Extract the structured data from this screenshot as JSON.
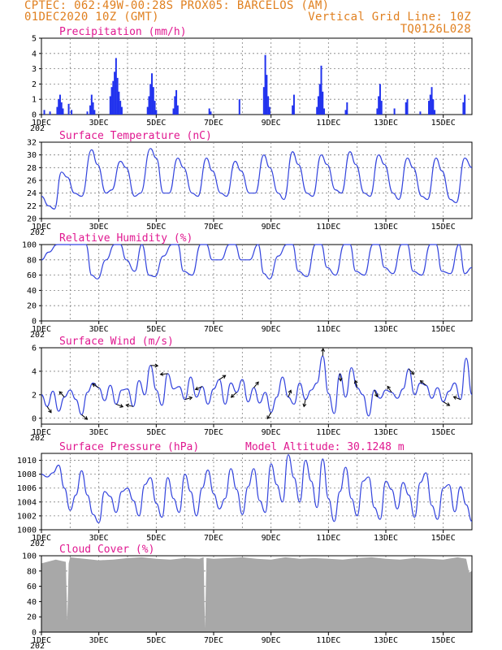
{
  "header": {
    "line1_left": "CPTEC:   062:49W-00:28S  PROX05: BARCELOS (AM)",
    "line2_left": "01DEC2020 10Z (GMT)",
    "line2_right": "Vertical Grid Line: 10Z",
    "line3_right": "TQ0126L028"
  },
  "colors": {
    "header_text": "#e08020",
    "panel_title": "#e01890",
    "series_line": "#3344dd",
    "precip_bar": "#2233ee",
    "cloud_fill": "#a8a8a8",
    "grid": "#808080"
  },
  "x_axis": {
    "labels": [
      "1DEC",
      "3DEC",
      "5DEC",
      "7DEC",
      "9DEC",
      "11DEC",
      "13DEC",
      "15DEC"
    ],
    "label_days": [
      1,
      3,
      5,
      7,
      9,
      11,
      13,
      15
    ],
    "year_marker": "202",
    "start_day": 1,
    "end_day": 16
  },
  "chart_data": [
    {
      "id": "precip",
      "type": "bar",
      "title": "Precipitation (mm/h)",
      "ylim": [
        0,
        5
      ],
      "yticks": [
        0,
        1,
        2,
        3,
        4,
        5
      ],
      "x": [
        1.1,
        1.3,
        1.55,
        1.6,
        1.65,
        1.7,
        1.75,
        1.95,
        2.05,
        2.6,
        2.7,
        2.75,
        2.8,
        2.85,
        3.4,
        3.45,
        3.5,
        3.55,
        3.6,
        3.65,
        3.7,
        3.75,
        3.8,
        4.7,
        4.75,
        4.8,
        4.85,
        4.9,
        4.95,
        5.0,
        5.6,
        5.65,
        5.7,
        5.75,
        6.85,
        6.9,
        7.9,
        8.75,
        8.8,
        8.85,
        8.9,
        8.95,
        9.75,
        9.8,
        10.6,
        10.65,
        10.7,
        10.75,
        10.8,
        10.85,
        11.6,
        11.65,
        12.7,
        12.75,
        12.8,
        12.85,
        13.3,
        13.7,
        13.75,
        14.2,
        14.5,
        14.55,
        14.6,
        14.65,
        14.7,
        15.7,
        15.75
      ],
      "values": [
        0.3,
        0.2,
        0.5,
        1.0,
        1.3,
        0.8,
        0.4,
        0.7,
        0.3,
        0.2,
        0.6,
        1.3,
        0.8,
        0.3,
        1.2,
        1.8,
        2.2,
        2.8,
        3.7,
        2.4,
        1.5,
        0.9,
        0.5,
        0.5,
        1.2,
        2.0,
        2.7,
        1.8,
        0.9,
        0.3,
        0.4,
        1.2,
        1.6,
        0.6,
        0.4,
        0.2,
        1.0,
        1.8,
        3.9,
        2.6,
        1.2,
        0.5,
        0.6,
        1.3,
        0.5,
        1.2,
        2.0,
        3.2,
        1.5,
        0.4,
        0.3,
        0.8,
        0.4,
        1.2,
        2.0,
        0.9,
        0.4,
        0.8,
        1.0,
        0.2,
        0.9,
        1.3,
        1.8,
        1.0,
        0.3,
        0.8,
        1.3
      ]
    },
    {
      "id": "temp",
      "type": "line",
      "title": "Surface Temperature (nC)",
      "ylim": [
        20,
        32
      ],
      "yticks": [
        20,
        22,
        24,
        26,
        28,
        30,
        32
      ],
      "x": [
        1.0,
        1.25,
        1.45,
        1.7,
        1.9,
        2.15,
        2.4,
        2.75,
        2.95,
        3.25,
        3.45,
        3.75,
        3.95,
        4.25,
        4.45,
        4.8,
        5.0,
        5.25,
        5.45,
        5.75,
        5.95,
        6.25,
        6.45,
        6.75,
        6.95,
        7.25,
        7.45,
        7.75,
        7.95,
        8.25,
        8.45,
        8.75,
        8.95,
        9.25,
        9.45,
        9.75,
        9.95,
        10.25,
        10.45,
        10.75,
        10.95,
        11.25,
        11.45,
        11.75,
        11.95,
        12.25,
        12.45,
        12.75,
        12.95,
        13.25,
        13.45,
        13.75,
        13.95,
        14.25,
        14.45,
        14.75,
        14.95,
        15.25,
        15.45,
        15.75,
        16.0
      ],
      "values": [
        23.5,
        22.0,
        21.5,
        27.3,
        26.5,
        24.0,
        23.5,
        30.8,
        28.5,
        24.0,
        24.5,
        29.0,
        28.0,
        23.5,
        24.0,
        31.0,
        29.5,
        24.0,
        24.0,
        29.5,
        28.0,
        24.0,
        23.5,
        29.5,
        27.5,
        24.0,
        23.5,
        29.0,
        27.5,
        24.0,
        24.0,
        30.0,
        28.0,
        24.0,
        23.0,
        30.5,
        28.5,
        24.0,
        23.5,
        30.0,
        28.5,
        24.5,
        24.0,
        30.5,
        28.5,
        24.0,
        23.5,
        30.0,
        28.5,
        24.0,
        23.0,
        29.5,
        28.0,
        23.5,
        23.0,
        29.5,
        27.5,
        23.0,
        22.5,
        29.5,
        28.0
      ]
    },
    {
      "id": "rh",
      "type": "line",
      "title": "Relative Humidity (%)",
      "ylim": [
        0,
        100
      ],
      "yticks": [
        0,
        20,
        40,
        60,
        80,
        100
      ],
      "x": [
        1.0,
        1.25,
        1.55,
        1.75,
        2.0,
        2.3,
        2.55,
        2.75,
        2.95,
        3.25,
        3.55,
        3.75,
        3.95,
        4.25,
        4.5,
        4.75,
        4.95,
        5.25,
        5.55,
        5.75,
        5.95,
        6.25,
        6.55,
        6.75,
        6.95,
        7.25,
        7.55,
        7.75,
        7.95,
        8.25,
        8.55,
        8.75,
        8.95,
        9.25,
        9.55,
        9.75,
        9.95,
        10.25,
        10.55,
        10.75,
        10.95,
        11.25,
        11.55,
        11.75,
        11.95,
        12.25,
        12.55,
        12.75,
        12.95,
        13.25,
        13.55,
        13.75,
        13.95,
        14.25,
        14.55,
        14.75,
        14.95,
        15.25,
        15.55,
        15.75,
        16.0
      ],
      "values": [
        80,
        90,
        100,
        100,
        100,
        100,
        100,
        60,
        55,
        80,
        100,
        100,
        80,
        65,
        100,
        60,
        58,
        85,
        100,
        100,
        65,
        60,
        100,
        100,
        80,
        80,
        100,
        100,
        80,
        80,
        100,
        62,
        55,
        85,
        100,
        100,
        65,
        58,
        100,
        100,
        70,
        60,
        100,
        100,
        65,
        60,
        100,
        100,
        70,
        62,
        100,
        100,
        65,
        60,
        100,
        100,
        65,
        62,
        100,
        62,
        70
      ]
    },
    {
      "id": "wind",
      "type": "line",
      "title": "Surface Wind (m/s)",
      "ylim": [
        -0.5,
        6
      ],
      "yticks": [
        0,
        2,
        4,
        6
      ],
      "x": [
        1.0,
        1.2,
        1.4,
        1.6,
        1.8,
        2.0,
        2.2,
        2.4,
        2.6,
        2.8,
        3.0,
        3.2,
        3.4,
        3.6,
        3.8,
        4.0,
        4.2,
        4.4,
        4.6,
        4.8,
        5.0,
        5.2,
        5.4,
        5.6,
        5.8,
        6.0,
        6.2,
        6.4,
        6.6,
        6.8,
        7.0,
        7.2,
        7.4,
        7.6,
        7.8,
        8.0,
        8.2,
        8.4,
        8.6,
        8.8,
        9.0,
        9.2,
        9.4,
        9.6,
        9.8,
        10.0,
        10.2,
        10.4,
        10.6,
        10.8,
        11.0,
        11.2,
        11.4,
        11.6,
        11.8,
        12.0,
        12.2,
        12.4,
        12.6,
        12.8,
        13.0,
        13.2,
        13.4,
        13.6,
        13.8,
        14.0,
        14.2,
        14.4,
        14.6,
        14.8,
        15.0,
        15.2,
        15.4,
        15.6,
        15.8,
        16.0
      ],
      "values": [
        2.0,
        1.0,
        2.3,
        0.6,
        1.8,
        2.4,
        1.6,
        0.3,
        2.2,
        3.0,
        2.6,
        1.5,
        2.8,
        1.2,
        2.4,
        2.5,
        1.0,
        3.2,
        2.0,
        4.5,
        2.4,
        1.1,
        3.8,
        2.5,
        2.7,
        1.6,
        3.5,
        1.8,
        2.7,
        1.2,
        2.5,
        3.3,
        1.2,
        3.0,
        2.2,
        3.3,
        1.4,
        2.6,
        1.3,
        2.2,
        0.5,
        1.8,
        3.5,
        1.8,
        1.2,
        3.0,
        1.6,
        2.4,
        3.0,
        5.3,
        2.1,
        0.4,
        3.8,
        1.8,
        4.3,
        2.6,
        2.0,
        0.2,
        2.4,
        1.7,
        2.4,
        2.2,
        1.7,
        2.5,
        4.2,
        2.0,
        3.0,
        2.8,
        1.7,
        2.6,
        1.4,
        2.3,
        3.0,
        1.6,
        5.1,
        2.0
      ]
    },
    {
      "id": "pressure",
      "type": "line",
      "title": "Surface Pressure (hPa)",
      "annotation": "Model Altitude: 30.1248 m",
      "ylim": [
        1000,
        1011
      ],
      "yticks": [
        1000,
        1002,
        1004,
        1006,
        1008,
        1010
      ],
      "x": [
        1.0,
        1.2,
        1.4,
        1.6,
        1.8,
        2.0,
        2.2,
        2.4,
        2.6,
        2.8,
        3.0,
        3.2,
        3.4,
        3.6,
        3.8,
        4.0,
        4.2,
        4.4,
        4.6,
        4.8,
        5.0,
        5.2,
        5.4,
        5.6,
        5.8,
        6.0,
        6.2,
        6.4,
        6.6,
        6.8,
        7.0,
        7.2,
        7.4,
        7.6,
        7.8,
        8.0,
        8.2,
        8.4,
        8.6,
        8.8,
        9.0,
        9.2,
        9.4,
        9.6,
        9.8,
        10.0,
        10.2,
        10.4,
        10.6,
        10.8,
        11.0,
        11.2,
        11.4,
        11.6,
        11.8,
        12.0,
        12.2,
        12.4,
        12.6,
        12.8,
        13.0,
        13.2,
        13.4,
        13.6,
        13.8,
        14.0,
        14.2,
        14.4,
        14.6,
        14.8,
        15.0,
        15.2,
        15.4,
        15.6,
        15.8,
        16.0
      ],
      "values": [
        1008.0,
        1007.6,
        1008.2,
        1009.3,
        1006.0,
        1002.8,
        1005.0,
        1008.5,
        1005.0,
        1002.2,
        1001.0,
        1005.5,
        1004.8,
        1002.5,
        1005.5,
        1006.0,
        1004.2,
        1002.0,
        1006.5,
        1007.5,
        1003.8,
        1001.8,
        1007.5,
        1004.5,
        1002.5,
        1008.0,
        1005.5,
        1002.0,
        1006.0,
        1008.6,
        1005.2,
        1003.0,
        1004.5,
        1008.8,
        1005.8,
        1002.2,
        1006.2,
        1008.8,
        1004.2,
        1002.5,
        1009.5,
        1006.5,
        1004.0,
        1010.8,
        1007.5,
        1004.0,
        1010.0,
        1007.0,
        1003.2,
        1010.2,
        1004.5,
        1001.2,
        1005.5,
        1009.0,
        1004.5,
        1002.0,
        1007.0,
        1007.6,
        1003.2,
        1001.5,
        1007.0,
        1005.8,
        1003.0,
        1006.8,
        1005.0,
        1001.8,
        1006.8,
        1008.2,
        1003.5,
        1001.5,
        1006.0,
        1006.5,
        1002.6,
        1006.2,
        1003.6,
        1001.2
      ]
    },
    {
      "id": "cloud",
      "type": "area",
      "title": "Cloud Cover (%)",
      "ylim": [
        0,
        100
      ],
      "yticks": [
        0,
        20,
        40,
        60,
        80,
        100
      ],
      "x": [
        1.0,
        1.5,
        1.85,
        1.9,
        1.95,
        2.0,
        2.5,
        3.0,
        3.5,
        4.0,
        4.5,
        5.0,
        5.5,
        6.0,
        6.5,
        6.65,
        6.7,
        6.75,
        7.0,
        7.5,
        8.0,
        8.5,
        9.0,
        9.5,
        10.0,
        10.5,
        11.0,
        11.5,
        12.0,
        12.5,
        13.0,
        13.5,
        14.0,
        14.5,
        15.0,
        15.5,
        15.8,
        15.9,
        16.0
      ],
      "values": [
        90,
        95,
        92,
        15,
        90,
        98,
        96,
        94,
        95,
        97,
        98,
        96,
        95,
        97,
        96,
        98,
        5,
        97,
        96,
        97,
        98,
        96,
        95,
        98,
        96,
        97,
        96,
        95,
        97,
        98,
        96,
        95,
        97,
        96,
        95,
        98,
        96,
        78,
        80
      ]
    }
  ]
}
